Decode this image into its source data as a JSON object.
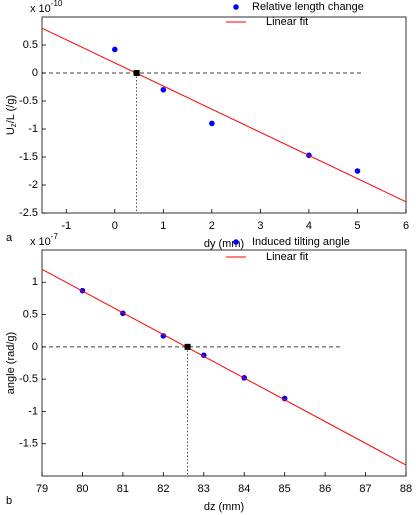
{
  "chart_data": [
    {
      "type": "scatter",
      "label": "a",
      "multiplier": "x 10",
      "exponent": "-10",
      "xlabel": "dy (mm)",
      "ylabel": [
        "U",
        "z",
        "/L (/g)"
      ],
      "xlim": [
        -1.5,
        6
      ],
      "ylim": [
        -2.5,
        1
      ],
      "xticks": [
        -1,
        0,
        1,
        2,
        3,
        4,
        5,
        6
      ],
      "yticks": [
        -2.5,
        -2,
        -1.5,
        -1,
        -0.5,
        0,
        0.5
      ],
      "series": [
        {
          "name": "Relative length change",
          "color": "#0000ff",
          "mode": "markers",
          "x": [
            0,
            1,
            2,
            4,
            5
          ],
          "values": [
            0.42,
            -0.3,
            -0.9,
            -1.47,
            -1.75
          ]
        },
        {
          "name": "Linear fit",
          "color": "#ff0000",
          "mode": "line",
          "x": [
            -1.5,
            6
          ],
          "values": [
            0.8,
            -2.3
          ]
        }
      ],
      "intercept": {
        "x": 0.45,
        "y": 0
      },
      "reference_line": {
        "y": 0,
        "x": [
          -1.5,
          5.1
        ]
      }
    },
    {
      "type": "scatter",
      "label": "b",
      "multiplier": "x 10",
      "exponent": "-7",
      "xlabel": "dz (mm)",
      "ylabel": [
        "angle (rad/g)"
      ],
      "xlim": [
        79,
        88
      ],
      "ylim": [
        -2,
        1.5
      ],
      "xticks": [
        79,
        80,
        81,
        82,
        83,
        84,
        85,
        86,
        87,
        88
      ],
      "yticks": [
        -1.5,
        -1,
        -0.5,
        0,
        0.5,
        1
      ],
      "series": [
        {
          "name": "Induced tilting angle",
          "color": "#0000ff",
          "mode": "markers",
          "x": [
            80,
            81,
            82,
            83,
            84,
            85
          ],
          "values": [
            0.87,
            0.52,
            0.17,
            -0.13,
            -0.48,
            -0.8
          ]
        },
        {
          "name": "Linear fit",
          "color": "#ff0000",
          "mode": "line",
          "x": [
            79,
            88
          ],
          "values": [
            1.2,
            -1.83
          ]
        }
      ],
      "intercept": {
        "x": 82.6,
        "y": 0
      },
      "reference_line": {
        "y": 0,
        "x": [
          79,
          86.4
        ]
      }
    }
  ]
}
